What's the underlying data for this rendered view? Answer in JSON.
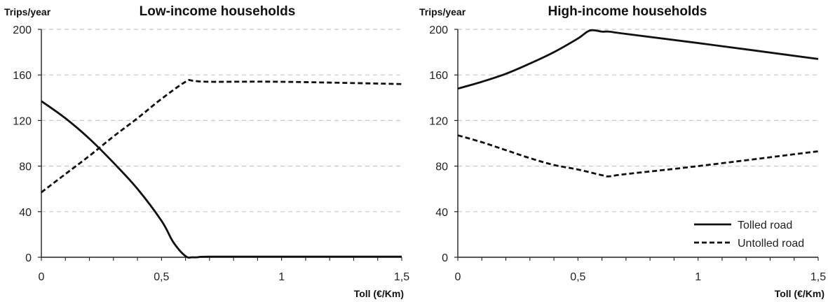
{
  "chart_data": [
    {
      "type": "line",
      "title": "Low-income households",
      "ylabel": "Trips/year",
      "xlabel": "Toll (€/Km)",
      "xlim": [
        0,
        1.5
      ],
      "ylim": [
        0,
        200
      ],
      "x_ticks": [
        0,
        0.5,
        1,
        1.5
      ],
      "x_tick_labels": [
        "0",
        "0,5",
        "1",
        "1,5"
      ],
      "y_ticks": [
        0,
        40,
        80,
        120,
        160,
        200
      ],
      "y_tick_labels": [
        "0",
        "40",
        "80",
        "120",
        "160",
        "200"
      ],
      "grid": "horizontal dashed",
      "series": [
        {
          "name": "Tolled road",
          "style": "solid",
          "x": [
            0,
            0.1,
            0.2,
            0.3,
            0.4,
            0.5,
            0.55,
            0.6,
            0.63,
            0.65,
            0.7,
            1.0,
            1.5
          ],
          "y": [
            137,
            122,
            104,
            83,
            60,
            32,
            13,
            1,
            0,
            0,
            0.5,
            0.5,
            0.5
          ]
        },
        {
          "name": "Untolled road",
          "style": "dashed",
          "x": [
            0,
            0.1,
            0.2,
            0.3,
            0.4,
            0.5,
            0.6,
            0.63,
            0.7,
            1.0,
            1.5
          ],
          "y": [
            57,
            73,
            89,
            106,
            122,
            139,
            154,
            155,
            154,
            154,
            152
          ]
        }
      ]
    },
    {
      "type": "line",
      "title": "High-income households",
      "ylabel": "Trips/year",
      "xlabel": "Toll (€/Km)",
      "xlim": [
        0,
        1.5
      ],
      "ylim": [
        0,
        200
      ],
      "x_ticks": [
        0,
        0.5,
        1,
        1.5
      ],
      "x_tick_labels": [
        "0",
        "0,5",
        "1",
        "1,5"
      ],
      "y_ticks": [
        0,
        40,
        80,
        120,
        160,
        200
      ],
      "y_tick_labels": [
        "0",
        "40",
        "80",
        "120",
        "160",
        "200"
      ],
      "grid": "horizontal dashed",
      "legend_position": "bottom-right",
      "series": [
        {
          "name": "Tolled road",
          "style": "solid",
          "x": [
            0,
            0.1,
            0.2,
            0.3,
            0.4,
            0.5,
            0.55,
            0.6,
            0.63,
            0.7,
            1.0,
            1.5
          ],
          "y": [
            148,
            154,
            161,
            170,
            180,
            192,
            199,
            198,
            198,
            196,
            188,
            174
          ]
        },
        {
          "name": "Untolled road",
          "style": "dashed",
          "x": [
            0,
            0.1,
            0.2,
            0.3,
            0.4,
            0.5,
            0.6,
            0.63,
            0.7,
            1.0,
            1.5
          ],
          "y": [
            107,
            101,
            94,
            87,
            81,
            77,
            72,
            71,
            73,
            80,
            93
          ]
        }
      ]
    }
  ]
}
